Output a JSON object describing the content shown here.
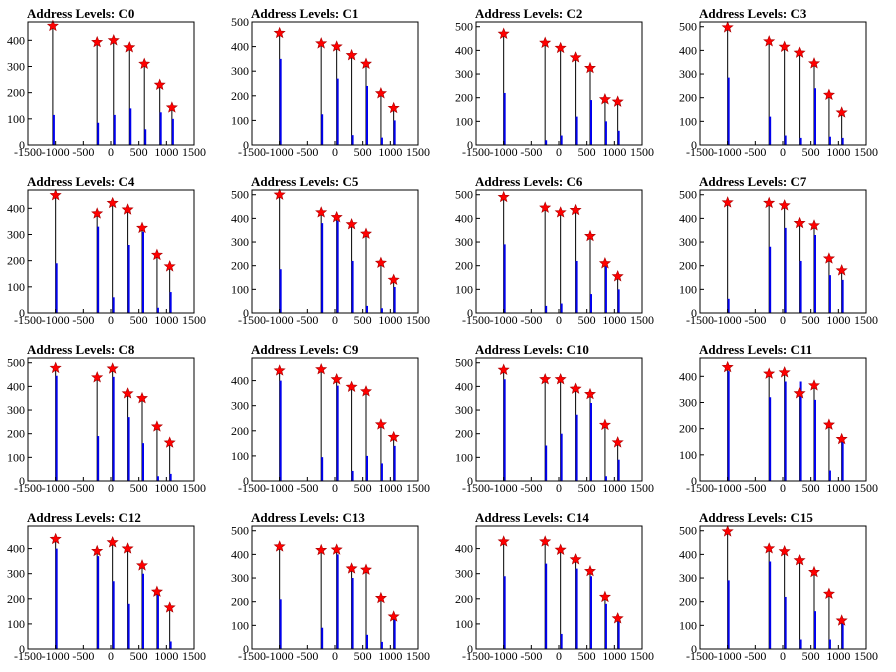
{
  "figure_title_prefix": "Address Levels: ",
  "chart_data": [
    {
      "type": "line",
      "title": "Address Levels: C0",
      "xlim": [
        -1500,
        1500
      ],
      "ylim": [
        0,
        470
      ],
      "yticks": [
        0,
        100,
        200,
        300,
        400
      ],
      "xticks": [
        -1500,
        -1000,
        -500,
        0,
        500,
        1000,
        1500
      ],
      "peaks": [
        {
          "x": -1050,
          "y": 455
        },
        {
          "x": -250,
          "y": 393
        },
        {
          "x": 50,
          "y": 400
        },
        {
          "x": 330,
          "y": 373
        },
        {
          "x": 600,
          "y": 310
        },
        {
          "x": 880,
          "y": 230
        },
        {
          "x": 1100,
          "y": 143
        }
      ],
      "blue": [
        115,
        85,
        115,
        140,
        60,
        125,
        100
      ],
      "marker_color": "#ff0000"
    },
    {
      "type": "line",
      "title": "Address Levels: C1",
      "xlim": [
        -1500,
        1500
      ],
      "ylim": [
        0,
        500
      ],
      "yticks": [
        0,
        100,
        200,
        300,
        400,
        500
      ],
      "xticks": [
        -1500,
        -1000,
        -500,
        0,
        500,
        1000,
        1500
      ],
      "peaks": [
        {
          "x": -1000,
          "y": 455
        },
        {
          "x": -250,
          "y": 413
        },
        {
          "x": 30,
          "y": 400
        },
        {
          "x": 300,
          "y": 365
        },
        {
          "x": 560,
          "y": 330
        },
        {
          "x": 830,
          "y": 210
        },
        {
          "x": 1060,
          "y": 150
        }
      ],
      "blue": [
        350,
        125,
        270,
        40,
        240,
        30,
        100
      ],
      "marker_color": "#ff0000"
    },
    {
      "type": "line",
      "title": "Address Levels: C2",
      "xlim": [
        -1500,
        1500
      ],
      "ylim": [
        0,
        520
      ],
      "yticks": [
        0,
        100,
        200,
        300,
        400,
        500
      ],
      "xticks": [
        -1500,
        -1000,
        -500,
        0,
        500,
        1000,
        1500
      ],
      "peaks": [
        {
          "x": -1000,
          "y": 470
        },
        {
          "x": -250,
          "y": 432
        },
        {
          "x": 30,
          "y": 410
        },
        {
          "x": 300,
          "y": 370
        },
        {
          "x": 560,
          "y": 325
        },
        {
          "x": 830,
          "y": 193
        },
        {
          "x": 1060,
          "y": 183
        }
      ],
      "blue": [
        220,
        20,
        40,
        120,
        190,
        100,
        60
      ],
      "marker_color": "#ff0000"
    },
    {
      "type": "line",
      "title": "Address Levels: C3",
      "xlim": [
        -1500,
        1500
      ],
      "ylim": [
        0,
        520
      ],
      "yticks": [
        0,
        100,
        200,
        300,
        400,
        500
      ],
      "xticks": [
        -1500,
        -1000,
        -500,
        0,
        500,
        1000,
        1500
      ],
      "peaks": [
        {
          "x": -1000,
          "y": 497
        },
        {
          "x": -250,
          "y": 438
        },
        {
          "x": 30,
          "y": 415
        },
        {
          "x": 300,
          "y": 390
        },
        {
          "x": 560,
          "y": 345
        },
        {
          "x": 830,
          "y": 212
        },
        {
          "x": 1060,
          "y": 137
        }
      ],
      "blue": [
        285,
        120,
        40,
        30,
        240,
        35,
        30
      ],
      "marker_color": "#ff0000"
    },
    {
      "type": "line",
      "title": "Address Levels: C4",
      "xlim": [
        -1500,
        1500
      ],
      "ylim": [
        0,
        470
      ],
      "yticks": [
        0,
        100,
        200,
        300,
        400
      ],
      "xticks": [
        -1500,
        -1000,
        -500,
        0,
        500,
        1000,
        1500
      ],
      "peaks": [
        {
          "x": -1000,
          "y": 450
        },
        {
          "x": -250,
          "y": 380
        },
        {
          "x": 30,
          "y": 420
        },
        {
          "x": 300,
          "y": 395
        },
        {
          "x": 560,
          "y": 325
        },
        {
          "x": 830,
          "y": 222
        },
        {
          "x": 1060,
          "y": 178
        }
      ],
      "blue": [
        190,
        330,
        60,
        260,
        310,
        20,
        80
      ],
      "marker_color": "#ff0000"
    },
    {
      "type": "line",
      "title": "Address Levels: C5",
      "xlim": [
        -1500,
        1500
      ],
      "ylim": [
        0,
        520
      ],
      "yticks": [
        0,
        100,
        200,
        300,
        400,
        500
      ],
      "xticks": [
        -1500,
        -1000,
        -500,
        0,
        500,
        1000,
        1500
      ],
      "peaks": [
        {
          "x": -1000,
          "y": 500
        },
        {
          "x": -250,
          "y": 425
        },
        {
          "x": 30,
          "y": 405
        },
        {
          "x": 300,
          "y": 375
        },
        {
          "x": 560,
          "y": 335
        },
        {
          "x": 830,
          "y": 212
        },
        {
          "x": 1060,
          "y": 140
        }
      ],
      "blue": [
        185,
        380,
        390,
        220,
        30,
        20,
        110
      ],
      "marker_color": "#ff0000"
    },
    {
      "type": "line",
      "title": "Address Levels: C6",
      "xlim": [
        -1500,
        1500
      ],
      "ylim": [
        0,
        520
      ],
      "yticks": [
        0,
        100,
        200,
        300,
        400,
        500
      ],
      "xticks": [
        -1500,
        -1000,
        -500,
        0,
        500,
        1000,
        1500
      ],
      "peaks": [
        {
          "x": -1000,
          "y": 490
        },
        {
          "x": -250,
          "y": 445
        },
        {
          "x": 30,
          "y": 425
        },
        {
          "x": 300,
          "y": 435
        },
        {
          "x": 560,
          "y": 325
        },
        {
          "x": 830,
          "y": 210
        },
        {
          "x": 1060,
          "y": 155
        }
      ],
      "blue": [
        290,
        30,
        40,
        220,
        80,
        200,
        100
      ],
      "marker_color": "#ff0000"
    },
    {
      "type": "line",
      "title": "Address Levels: C7",
      "xlim": [
        -1500,
        1500
      ],
      "ylim": [
        0,
        520
      ],
      "yticks": [
        0,
        100,
        200,
        300,
        400,
        500
      ],
      "xticks": [
        -1500,
        -1000,
        -500,
        0,
        500,
        1000,
        1500
      ],
      "peaks": [
        {
          "x": -1000,
          "y": 467
        },
        {
          "x": -250,
          "y": 465
        },
        {
          "x": 30,
          "y": 455
        },
        {
          "x": 300,
          "y": 380
        },
        {
          "x": 560,
          "y": 370
        },
        {
          "x": 830,
          "y": 230
        },
        {
          "x": 1060,
          "y": 180
        }
      ],
      "blue": [
        60,
        280,
        360,
        220,
        330,
        160,
        140
      ],
      "marker_color": "#ff0000"
    },
    {
      "type": "line",
      "title": "Address Levels: C8",
      "xlim": [
        -1500,
        1500
      ],
      "ylim": [
        0,
        520
      ],
      "yticks": [
        0,
        100,
        200,
        300,
        400,
        500
      ],
      "xticks": [
        -1500,
        -1000,
        -500,
        0,
        500,
        1000,
        1500
      ],
      "peaks": [
        {
          "x": -1000,
          "y": 478
        },
        {
          "x": -250,
          "y": 438
        },
        {
          "x": 30,
          "y": 475
        },
        {
          "x": 300,
          "y": 370
        },
        {
          "x": 560,
          "y": 350
        },
        {
          "x": 830,
          "y": 230
        },
        {
          "x": 1060,
          "y": 162
        }
      ],
      "blue": [
        445,
        190,
        440,
        270,
        160,
        20,
        30
      ],
      "marker_color": "#ff0000"
    },
    {
      "type": "line",
      "title": "Address Levels: C9",
      "xlim": [
        -1500,
        1500
      ],
      "ylim": [
        0,
        490
      ],
      "yticks": [
        0,
        100,
        200,
        300,
        400
      ],
      "xticks": [
        -1500,
        -1000,
        -500,
        0,
        500,
        1000,
        1500
      ],
      "peaks": [
        {
          "x": -1000,
          "y": 440
        },
        {
          "x": -250,
          "y": 445
        },
        {
          "x": 30,
          "y": 405
        },
        {
          "x": 300,
          "y": 375
        },
        {
          "x": 560,
          "y": 357
        },
        {
          "x": 830,
          "y": 225
        },
        {
          "x": 1060,
          "y": 175
        }
      ],
      "blue": [
        400,
        95,
        380,
        40,
        100,
        70,
        140
      ],
      "marker_color": "#ff0000"
    },
    {
      "type": "line",
      "title": "Address Levels: C10",
      "xlim": [
        -1500,
        1500
      ],
      "ylim": [
        0,
        520
      ],
      "yticks": [
        0,
        100,
        200,
        300,
        400,
        500
      ],
      "xticks": [
        -1500,
        -1000,
        -500,
        0,
        500,
        1000,
        1500
      ],
      "peaks": [
        {
          "x": -1000,
          "y": 470
        },
        {
          "x": -250,
          "y": 430
        },
        {
          "x": 30,
          "y": 430
        },
        {
          "x": 300,
          "y": 390
        },
        {
          "x": 560,
          "y": 367
        },
        {
          "x": 830,
          "y": 237
        },
        {
          "x": 1060,
          "y": 163
        }
      ],
      "blue": [
        430,
        150,
        200,
        280,
        330,
        20,
        90
      ],
      "marker_color": "#ff0000"
    },
    {
      "type": "line",
      "title": "Address Levels: C11",
      "xlim": [
        -1500,
        1500
      ],
      "ylim": [
        0,
        470
      ],
      "yticks": [
        0,
        100,
        200,
        300,
        400
      ],
      "xticks": [
        -1500,
        -1000,
        -500,
        0,
        500,
        1000,
        1500
      ],
      "peaks": [
        {
          "x": -1000,
          "y": 435
        },
        {
          "x": -250,
          "y": 410
        },
        {
          "x": 30,
          "y": 415
        },
        {
          "x": 300,
          "y": 335
        },
        {
          "x": 560,
          "y": 365
        },
        {
          "x": 830,
          "y": 215
        },
        {
          "x": 1060,
          "y": 160
        }
      ],
      "blue": [
        420,
        320,
        380,
        380,
        310,
        40,
        150
      ],
      "marker_color": "#ff0000"
    },
    {
      "type": "line",
      "title": "Address Levels: C12",
      "xlim": [
        -1500,
        1500
      ],
      "ylim": [
        0,
        490
      ],
      "yticks": [
        0,
        100,
        200,
        300,
        400
      ],
      "xticks": [
        -1500,
        -1000,
        -500,
        0,
        500,
        1000,
        1500
      ],
      "peaks": [
        {
          "x": -1000,
          "y": 438
        },
        {
          "x": -250,
          "y": 390
        },
        {
          "x": 30,
          "y": 425
        },
        {
          "x": 300,
          "y": 400
        },
        {
          "x": 560,
          "y": 333
        },
        {
          "x": 830,
          "y": 228
        },
        {
          "x": 1060,
          "y": 165
        }
      ],
      "blue": [
        400,
        370,
        270,
        180,
        300,
        230,
        30
      ],
      "marker_color": "#ff0000"
    },
    {
      "type": "line",
      "title": "Address Levels: C13",
      "xlim": [
        -1500,
        1500
      ],
      "ylim": [
        0,
        520
      ],
      "yticks": [
        0,
        100,
        200,
        300,
        400,
        500
      ],
      "xticks": [
        -1500,
        -1000,
        -500,
        0,
        500,
        1000,
        1500
      ],
      "peaks": [
        {
          "x": -1000,
          "y": 433
        },
        {
          "x": -250,
          "y": 418
        },
        {
          "x": 30,
          "y": 420
        },
        {
          "x": 300,
          "y": 340
        },
        {
          "x": 560,
          "y": 335
        },
        {
          "x": 830,
          "y": 215
        },
        {
          "x": 1060,
          "y": 137
        }
      ],
      "blue": [
        210,
        90,
        400,
        300,
        60,
        30,
        130
      ],
      "marker_color": "#ff0000"
    },
    {
      "type": "line",
      "title": "Address Levels: C14",
      "xlim": [
        -1500,
        1500
      ],
      "ylim": [
        0,
        490
      ],
      "yticks": [
        0,
        100,
        200,
        300,
        400
      ],
      "xticks": [
        -1500,
        -1000,
        -500,
        0,
        500,
        1000,
        1500
      ],
      "peaks": [
        {
          "x": -1000,
          "y": 428
        },
        {
          "x": -250,
          "y": 428
        },
        {
          "x": 30,
          "y": 395
        },
        {
          "x": 300,
          "y": 357
        },
        {
          "x": 560,
          "y": 310
        },
        {
          "x": 830,
          "y": 207
        },
        {
          "x": 1060,
          "y": 122
        }
      ],
      "blue": [
        290,
        340,
        60,
        320,
        290,
        180,
        110
      ],
      "marker_color": "#ff0000"
    },
    {
      "type": "line",
      "title": "Address Levels: C15",
      "xlim": [
        -1500,
        1500
      ],
      "ylim": [
        0,
        520
      ],
      "yticks": [
        0,
        100,
        200,
        300,
        400,
        500
      ],
      "xticks": [
        -1500,
        -1000,
        -500,
        0,
        500,
        1000,
        1500
      ],
      "peaks": [
        {
          "x": -1000,
          "y": 497
        },
        {
          "x": -250,
          "y": 425
        },
        {
          "x": 30,
          "y": 413
        },
        {
          "x": 300,
          "y": 375
        },
        {
          "x": 560,
          "y": 325
        },
        {
          "x": 830,
          "y": 233
        },
        {
          "x": 1060,
          "y": 120
        }
      ],
      "blue": [
        290,
        370,
        220,
        40,
        160,
        40,
        130
      ],
      "marker_color": "#ff0000"
    }
  ],
  "colors": {
    "spike_black": "#000000",
    "spike_blue": "#0000ee",
    "marker": "#ff0000"
  }
}
